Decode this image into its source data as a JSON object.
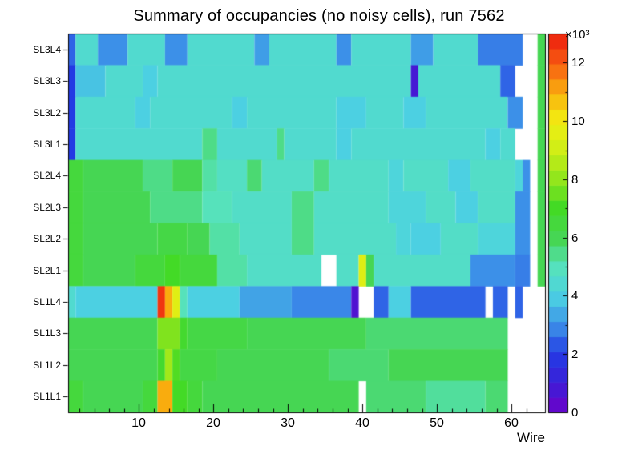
{
  "title": "Summary of occupancies (no noisy cells), run 7562",
  "chart_data": {
    "type": "heatmap",
    "title": "Summary of occupancies (no noisy cells), run 7562",
    "x_axis": {
      "label": "Wire",
      "ticks": [
        10,
        20,
        30,
        40,
        50,
        60
      ],
      "range": [
        0.5,
        64.5
      ],
      "n_wires": 64,
      "minor_tick_step": 2
    },
    "y_labels_top_to_bottom": [
      "SL3L4",
      "SL3L3",
      "SL3L2",
      "SL3L1",
      "SL2L4",
      "SL2L3",
      "SL2L2",
      "SL2L1",
      "SL1L4",
      "SL1L3",
      "SL1L2",
      "SL1L1"
    ],
    "colorbar": {
      "min": 0,
      "max": 13000,
      "ticks": [
        0,
        2,
        4,
        6,
        8,
        10,
        12
      ],
      "tick_unit": 1000,
      "exponent_label": "×10³",
      "position": "right",
      "bands": 25
    },
    "grid": false,
    "empty_bin_color": "#ffffff",
    "frame_color": "#000000",
    "palette_stops": [
      [
        0.0,
        "#6e00c8"
      ],
      [
        0.08,
        "#3a1fd8"
      ],
      [
        0.155,
        "#233ae4"
      ],
      [
        0.23,
        "#3c8fe8"
      ],
      [
        0.31,
        "#4cd2e2"
      ],
      [
        0.385,
        "#56e2bb"
      ],
      [
        0.46,
        "#46d654"
      ],
      [
        0.54,
        "#43da25"
      ],
      [
        0.615,
        "#8fe51c"
      ],
      [
        0.69,
        "#cdee16"
      ],
      [
        0.77,
        "#f2ee12"
      ],
      [
        0.845,
        "#f9ad0e"
      ],
      [
        0.92,
        "#f75d12"
      ],
      [
        1.0,
        "#ec1c0e"
      ]
    ],
    "runs_format": "[first_wire, last_wire, occupancy_counts]; wires not covered by a run are empty (white)",
    "rows": [
      {
        "label": "SL3L4",
        "runs": [
          [
            1,
            1,
            2500
          ],
          [
            2,
            4,
            4500
          ],
          [
            5,
            8,
            3000
          ],
          [
            9,
            13,
            4500
          ],
          [
            14,
            16,
            3000
          ],
          [
            17,
            25,
            4500
          ],
          [
            26,
            27,
            3200
          ],
          [
            28,
            36,
            4500
          ],
          [
            37,
            38,
            3000
          ],
          [
            39,
            46,
            4500
          ],
          [
            47,
            49,
            3200
          ],
          [
            50,
            55,
            4500
          ],
          [
            56,
            61,
            2800
          ],
          [
            64,
            64,
            6000
          ]
        ]
      },
      {
        "label": "SL3L3",
        "runs": [
          [
            1,
            1,
            2000
          ],
          [
            2,
            5,
            3800
          ],
          [
            6,
            10,
            4500
          ],
          [
            11,
            12,
            4000
          ],
          [
            13,
            46,
            4500
          ],
          [
            47,
            47,
            800
          ],
          [
            48,
            58,
            4500
          ],
          [
            59,
            60,
            2500
          ],
          [
            64,
            64,
            6000
          ]
        ]
      },
      {
        "label": "SL3L2",
        "runs": [
          [
            1,
            1,
            2000
          ],
          [
            2,
            9,
            4500
          ],
          [
            10,
            11,
            4000
          ],
          [
            12,
            22,
            4500
          ],
          [
            23,
            24,
            4000
          ],
          [
            25,
            36,
            4500
          ],
          [
            37,
            40,
            4000
          ],
          [
            41,
            45,
            4500
          ],
          [
            46,
            48,
            4000
          ],
          [
            49,
            59,
            4500
          ],
          [
            60,
            61,
            3000
          ],
          [
            64,
            64,
            6000
          ]
        ]
      },
      {
        "label": "SL3L1",
        "runs": [
          [
            1,
            1,
            2000
          ],
          [
            2,
            18,
            4500
          ],
          [
            19,
            20,
            5500
          ],
          [
            21,
            28,
            4500
          ],
          [
            29,
            29,
            5500
          ],
          [
            30,
            36,
            4500
          ],
          [
            37,
            38,
            4000
          ],
          [
            39,
            56,
            4500
          ],
          [
            57,
            58,
            4000
          ],
          [
            59,
            60,
            4500
          ],
          [
            64,
            64,
            6000
          ]
        ]
      },
      {
        "label": "SL2L4",
        "runs": [
          [
            1,
            2,
            6500
          ],
          [
            3,
            10,
            6000
          ],
          [
            11,
            14,
            5500
          ],
          [
            15,
            18,
            6000
          ],
          [
            19,
            20,
            5200
          ],
          [
            21,
            24,
            4800
          ],
          [
            25,
            26,
            5700
          ],
          [
            27,
            33,
            4700
          ],
          [
            34,
            35,
            5500
          ],
          [
            36,
            43,
            4700
          ],
          [
            44,
            45,
            4200
          ],
          [
            46,
            51,
            4700
          ],
          [
            52,
            54,
            4000
          ],
          [
            55,
            60,
            4700
          ],
          [
            61,
            61,
            4200
          ],
          [
            62,
            62,
            3000
          ],
          [
            64,
            64,
            6000
          ]
        ]
      },
      {
        "label": "SL2L3",
        "runs": [
          [
            1,
            2,
            6500
          ],
          [
            3,
            11,
            6000
          ],
          [
            12,
            18,
            5500
          ],
          [
            19,
            22,
            5000
          ],
          [
            23,
            30,
            4700
          ],
          [
            31,
            33,
            5500
          ],
          [
            34,
            43,
            4700
          ],
          [
            44,
            48,
            4200
          ],
          [
            49,
            52,
            4700
          ],
          [
            53,
            55,
            4000
          ],
          [
            56,
            60,
            4700
          ],
          [
            61,
            62,
            3000
          ],
          [
            64,
            64,
            6000
          ]
        ]
      },
      {
        "label": "SL2L2",
        "runs": [
          [
            1,
            2,
            6500
          ],
          [
            3,
            12,
            6000
          ],
          [
            13,
            16,
            6300
          ],
          [
            17,
            19,
            6000
          ],
          [
            20,
            23,
            5200
          ],
          [
            24,
            30,
            4700
          ],
          [
            31,
            33,
            5500
          ],
          [
            34,
            44,
            4700
          ],
          [
            45,
            46,
            4200
          ],
          [
            47,
            50,
            4000
          ],
          [
            51,
            55,
            4700
          ],
          [
            56,
            60,
            4200
          ],
          [
            61,
            62,
            3000
          ],
          [
            64,
            64,
            6000
          ]
        ]
      },
      {
        "label": "SL2L1",
        "runs": [
          [
            1,
            2,
            6500
          ],
          [
            3,
            9,
            6000
          ],
          [
            10,
            13,
            6500
          ],
          [
            14,
            15,
            7000
          ],
          [
            16,
            20,
            6500
          ],
          [
            21,
            24,
            5200
          ],
          [
            25,
            34,
            4700
          ],
          [
            37,
            39,
            4700
          ],
          [
            40,
            40,
            9500
          ],
          [
            41,
            41,
            6000
          ],
          [
            42,
            54,
            4700
          ],
          [
            55,
            60,
            3000
          ],
          [
            61,
            62,
            2800
          ],
          [
            64,
            64,
            6000
          ]
        ]
      },
      {
        "label": "SL1L4",
        "runs": [
          [
            1,
            1,
            4500
          ],
          [
            2,
            12,
            4000
          ],
          [
            13,
            13,
            12600
          ],
          [
            14,
            14,
            11000
          ],
          [
            15,
            15,
            9500
          ],
          [
            16,
            16,
            5000
          ],
          [
            17,
            23,
            4000
          ],
          [
            24,
            30,
            3300
          ],
          [
            31,
            38,
            2900
          ],
          [
            39,
            39,
            600
          ],
          [
            42,
            43,
            2500
          ],
          [
            44,
            46,
            4000
          ],
          [
            47,
            56,
            2500
          ],
          [
            58,
            59,
            2500
          ],
          [
            61,
            61,
            2500
          ]
        ]
      },
      {
        "label": "SL1L3",
        "runs": [
          [
            1,
            12,
            6000
          ],
          [
            13,
            15,
            7800
          ],
          [
            16,
            16,
            6800
          ],
          [
            17,
            24,
            6300
          ],
          [
            25,
            40,
            6000
          ],
          [
            41,
            59,
            5700
          ]
        ]
      },
      {
        "label": "SL1L2",
        "runs": [
          [
            1,
            12,
            6000
          ],
          [
            13,
            13,
            6800
          ],
          [
            14,
            14,
            8300
          ],
          [
            15,
            15,
            7200
          ],
          [
            16,
            20,
            6300
          ],
          [
            21,
            35,
            6000
          ],
          [
            36,
            43,
            5700
          ],
          [
            44,
            59,
            6000
          ]
        ]
      },
      {
        "label": "SL1L1",
        "runs": [
          [
            1,
            2,
            6500
          ],
          [
            3,
            10,
            6000
          ],
          [
            11,
            12,
            6500
          ],
          [
            13,
            14,
            11000
          ],
          [
            15,
            16,
            7000
          ],
          [
            17,
            18,
            6500
          ],
          [
            19,
            39,
            6000
          ],
          [
            41,
            48,
            5700
          ],
          [
            49,
            56,
            5300
          ],
          [
            57,
            59,
            5700
          ]
        ]
      }
    ]
  }
}
